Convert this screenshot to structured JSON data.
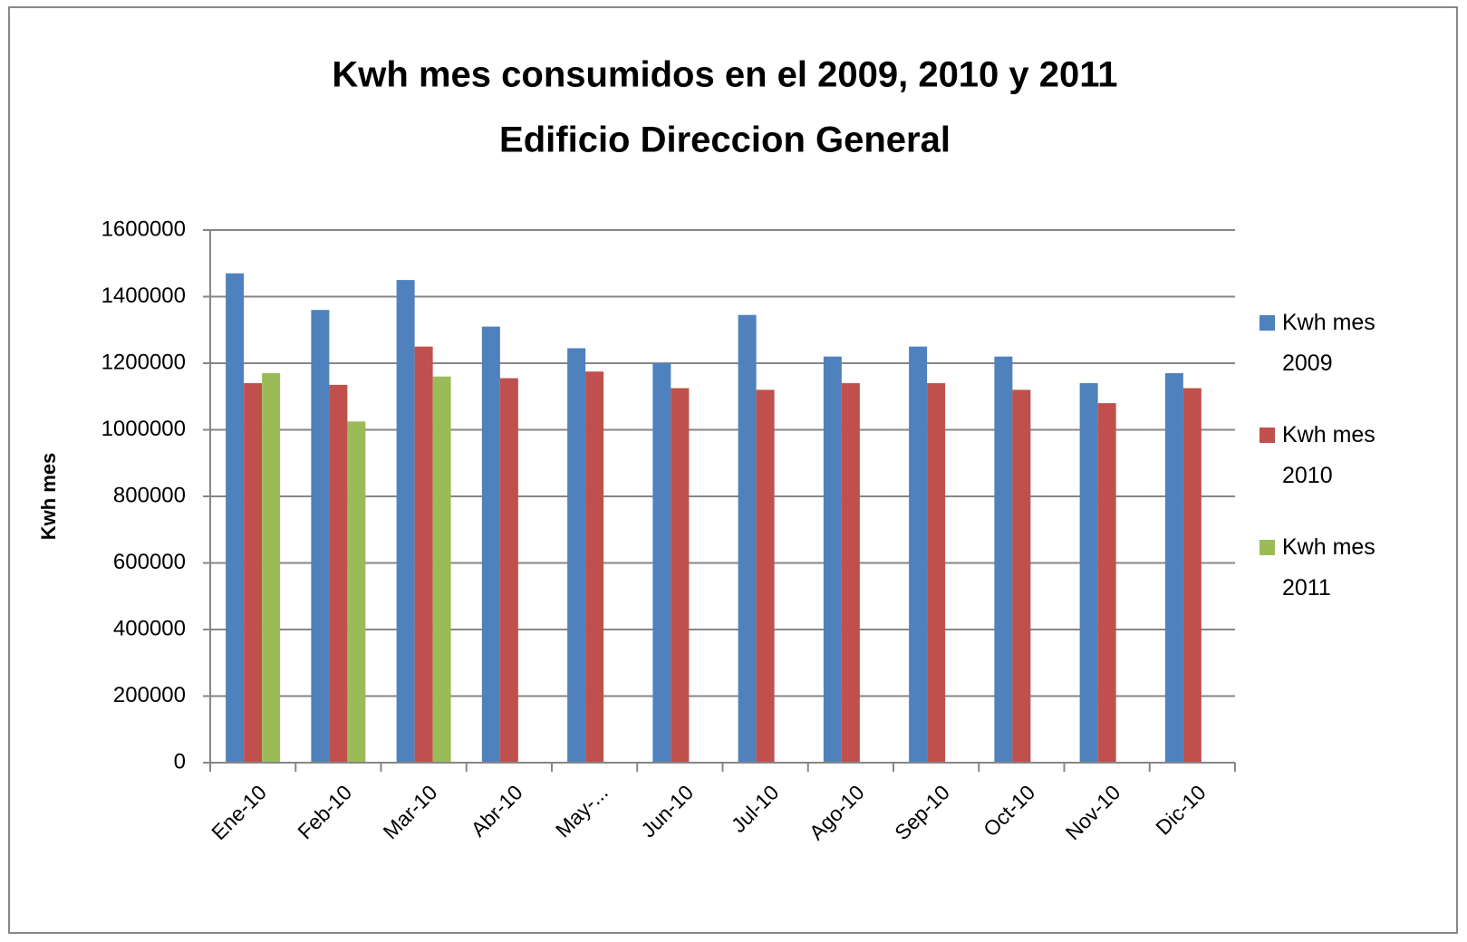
{
  "chart_data": {
    "type": "bar",
    "title": "Kwh mes consumidos  en el 2009, 2010 y 2011",
    "subtitle": "Edificio Direccion General",
    "y_label": "Kwh mes",
    "categories": [
      "Ene-10",
      "Feb-10",
      "Mar-10",
      "Abr-10",
      "May-...",
      "Jun-10",
      "Jul-10",
      "Ago-10",
      "Sep-10",
      "Oct-10",
      "Nov-10",
      "Dic-10"
    ],
    "series": [
      {
        "name": "Kwh mes 2009",
        "color": "#4f81bd",
        "values": [
          1470000,
          1360000,
          1450000,
          1310000,
          1245000,
          1200000,
          1345000,
          1220000,
          1250000,
          1220000,
          1140000,
          1170000
        ]
      },
      {
        "name": "Kwh mes 2010",
        "color": "#c0504d",
        "values": [
          1140000,
          1135000,
          1250000,
          1155000,
          1175000,
          1125000,
          1120000,
          1140000,
          1140000,
          1120000,
          1080000,
          1125000
        ]
      },
      {
        "name": "Kwh mes 2011",
        "color": "#9bbb59",
        "values": [
          1170000,
          1025000,
          1160000,
          null,
          null,
          null,
          null,
          null,
          null,
          null,
          null,
          null
        ]
      }
    ],
    "ylim": [
      0,
      1600000
    ],
    "yticks": [
      0,
      200000,
      400000,
      600000,
      800000,
      1000000,
      1200000,
      1400000,
      1600000
    ],
    "grid": true,
    "legend": "right"
  }
}
